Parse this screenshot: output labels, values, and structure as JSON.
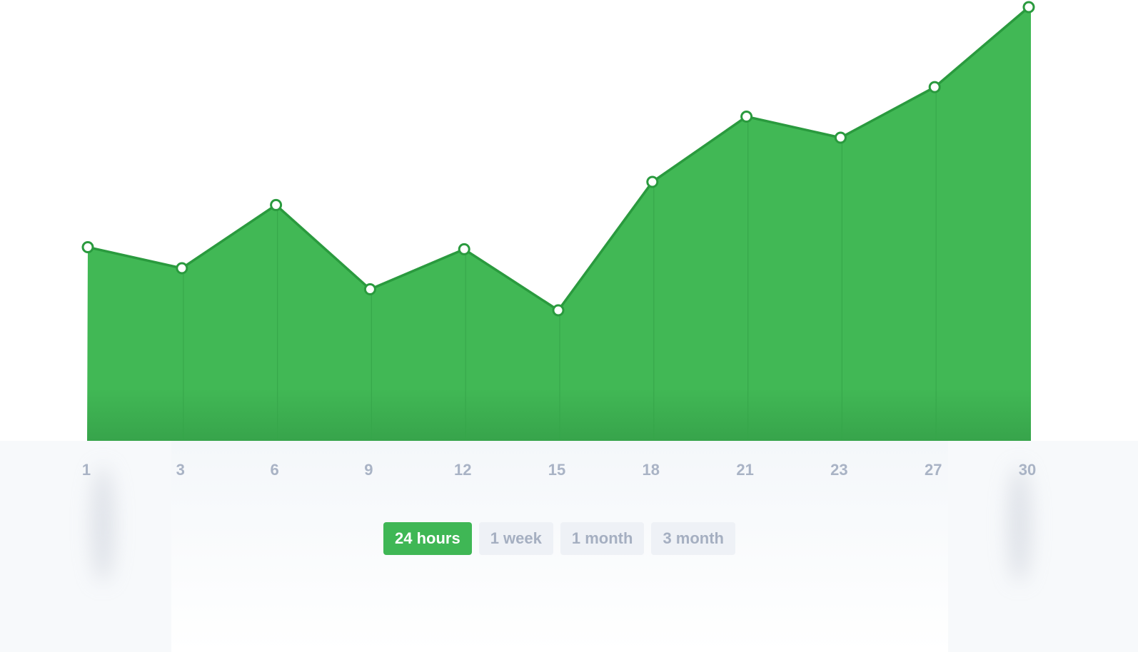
{
  "chart_data": {
    "type": "area",
    "x": [
      "1",
      "3",
      "6",
      "9",
      "12",
      "15",
      "18",
      "21",
      "23",
      "27",
      "30"
    ],
    "series": [
      {
        "values": [
          46,
          41,
          56,
          36,
          45.5,
          31,
          61.5,
          77,
          72,
          84,
          103
        ]
      }
    ],
    "ylim": [
      0,
      103
    ],
    "grid": false,
    "legend": "none",
    "colors": {
      "fill": "#41b855",
      "fill_bottom": "#37a44b",
      "line": "#2a9a3e",
      "marker_fill": "#ffffff",
      "guide": "#36a64a",
      "tick_text": "#a9b3c5"
    }
  },
  "range_selector": {
    "selected": "24 hours",
    "options": [
      "24 hours",
      "1 week",
      "1 month",
      "3 month"
    ]
  }
}
